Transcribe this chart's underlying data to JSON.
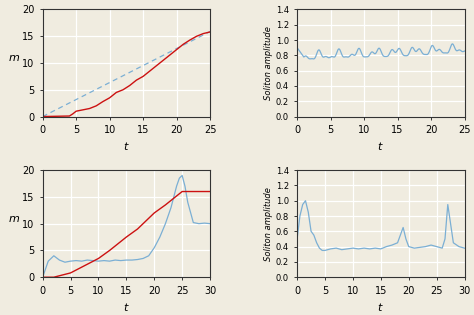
{
  "panel1": {
    "xlabel": "t",
    "ylabel": "m",
    "xlim": [
      0,
      25
    ],
    "ylim": [
      0,
      20
    ],
    "xticks": [
      0,
      5,
      10,
      15,
      20,
      25
    ],
    "yticks": [
      0,
      5,
      10,
      15,
      20
    ],
    "red_line_color": "#cc1111",
    "blue_line_color": "#7bafd4"
  },
  "panel2": {
    "xlabel": "t",
    "ylabel": "Soliton amplitude",
    "xlim": [
      0,
      25
    ],
    "ylim": [
      0.0,
      1.4
    ],
    "xticks": [
      0,
      5,
      10,
      15,
      20,
      25
    ],
    "yticks": [
      0.0,
      0.2,
      0.4,
      0.6,
      0.8,
      1.0,
      1.2,
      1.4
    ],
    "blue_line_color": "#7bafd4"
  },
  "panel3": {
    "xlabel": "t",
    "ylabel": "m",
    "xlim": [
      0,
      30
    ],
    "ylim": [
      0,
      20
    ],
    "xticks": [
      0,
      5,
      10,
      15,
      20,
      25,
      30
    ],
    "yticks": [
      0,
      5,
      10,
      15,
      20
    ],
    "red_line_color": "#cc1111",
    "blue_line_color": "#7bafd4"
  },
  "panel4": {
    "xlabel": "t",
    "ylabel": "Soliton amplitude",
    "xlim": [
      0,
      30
    ],
    "ylim": [
      0.0,
      1.4
    ],
    "xticks": [
      0,
      5,
      10,
      15,
      20,
      25,
      30
    ],
    "yticks": [
      0.0,
      0.2,
      0.4,
      0.6,
      0.8,
      1.0,
      1.2,
      1.4
    ],
    "blue_line_color": "#7bafd4"
  },
  "background_color": "#f0ece0",
  "grid_color": "#ffffff",
  "label_fontsize": 8,
  "tick_fontsize": 7
}
